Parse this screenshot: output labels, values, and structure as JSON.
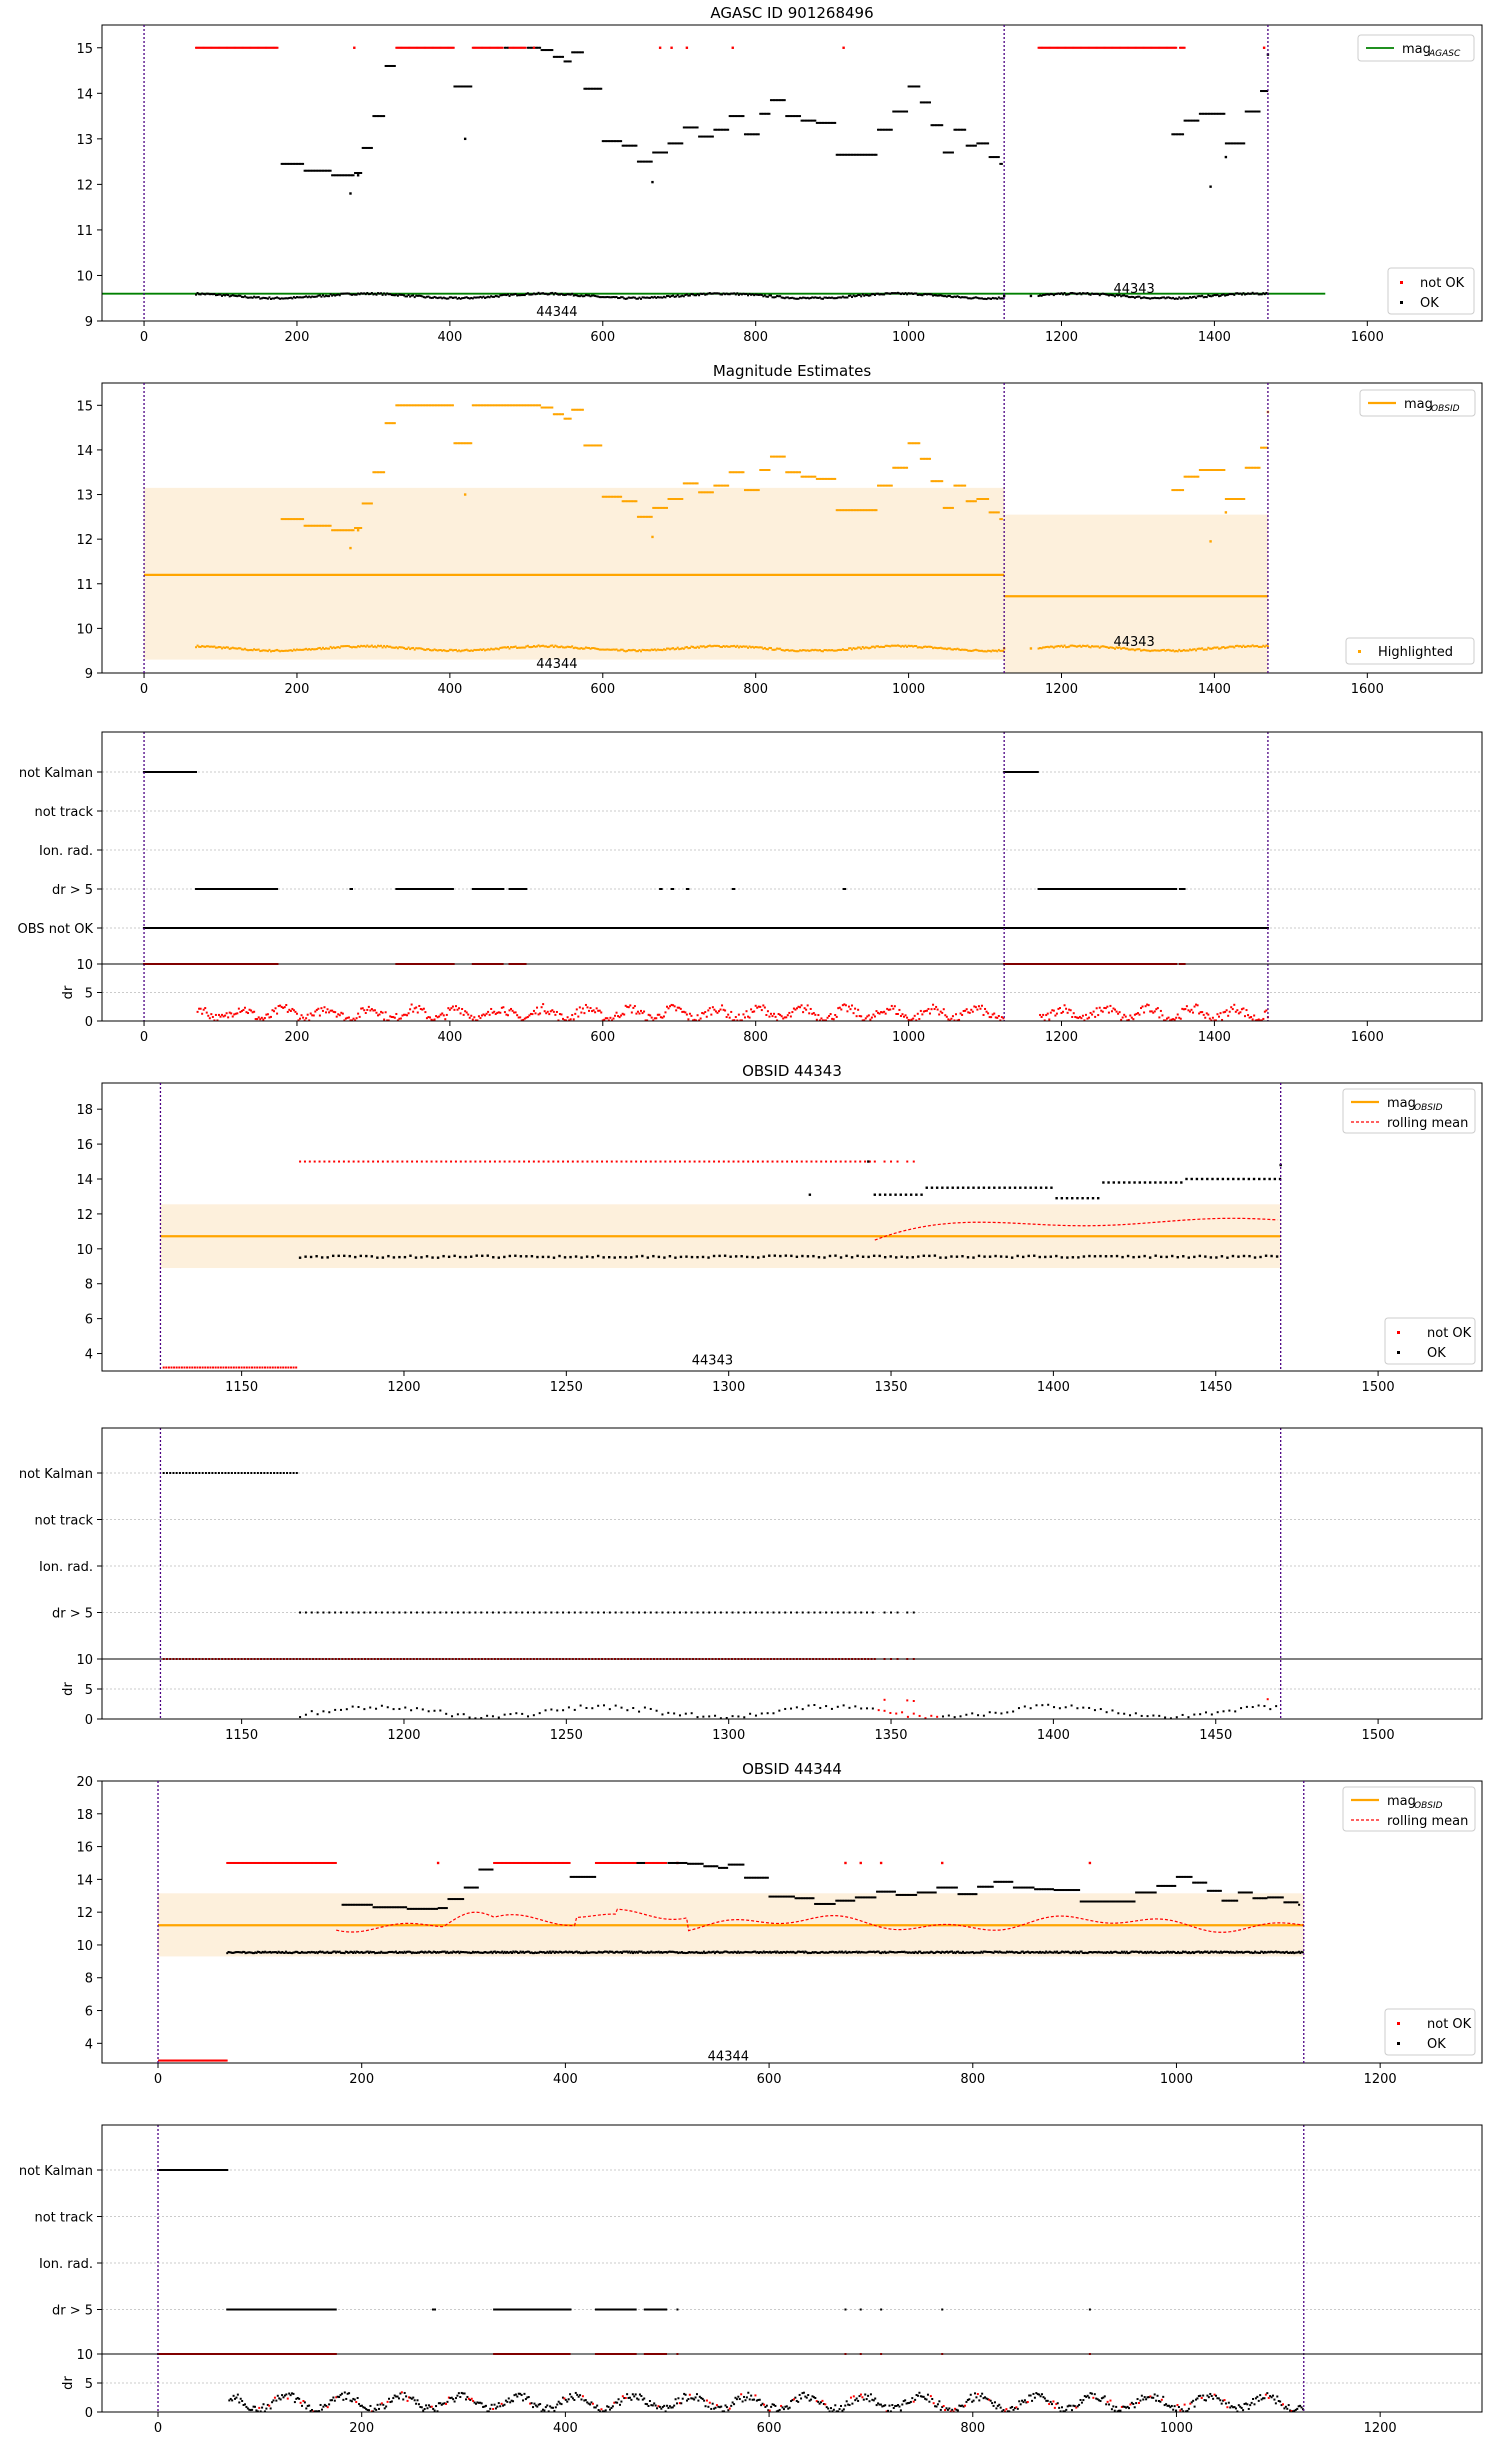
{
  "chart_data": [
    {
      "type": "scatter",
      "title": "AGASC ID 901268496",
      "xlim": [
        -55,
        1750
      ],
      "ylim": [
        9,
        15.5
      ],
      "xticks": [
        "0",
        "200",
        "400",
        "600",
        "800",
        "1000",
        "1200",
        "1400",
        "1600"
      ],
      "xtick_values": [
        0,
        200,
        400,
        600,
        800,
        1000,
        1200,
        1400,
        1600
      ],
      "yticks": [
        "9",
        "10",
        "11",
        "12",
        "13",
        "14",
        "15"
      ],
      "ytick_values": [
        9,
        10,
        11,
        12,
        13,
        14,
        15
      ],
      "obsid_boundaries": [
        0,
        1125,
        1470
      ],
      "obsid_labels": [
        {
          "text": "44344",
          "x": 540,
          "y": 9.2
        },
        {
          "text": "44343",
          "x": 1295,
          "y": 9.7
        }
      ],
      "mag_agasc": 9.6,
      "legend_line": {
        "label": "mag",
        "sub": "AGASC"
      },
      "legend_points": [
        {
          "label": "not OK",
          "color": "#ff0000"
        },
        {
          "label": "OK",
          "color": "#000000"
        }
      ],
      "colors": {
        "ok": "#000000",
        "not_ok": "#ff0000",
        "agasc_line": "#008000",
        "boundary": "#4b0082"
      },
      "segments": [
        [
          180,
          12.45
        ],
        [
          210,
          12.3
        ],
        [
          245,
          12.2
        ],
        [
          275,
          12.25
        ],
        [
          285,
          12.8
        ],
        [
          300,
          13.5
        ],
        [
          315,
          14.6
        ],
        [
          330,
          14.85
        ],
        [
          345,
          15
        ],
        [
          380,
          14.75
        ],
        [
          405,
          14.15
        ],
        [
          430,
          14.2
        ],
        [
          455,
          15
        ],
        [
          485,
          15
        ],
        [
          520,
          14.95
        ],
        [
          535,
          14.8
        ],
        [
          550,
          14.7
        ],
        [
          560,
          14.9
        ],
        [
          575,
          14.1
        ],
        [
          600,
          12.95
        ],
        [
          625,
          12.85
        ],
        [
          645,
          12.5
        ],
        [
          665,
          12.7
        ],
        [
          685,
          12.9
        ],
        [
          705,
          13.25
        ],
        [
          725,
          13.05
        ],
        [
          745,
          13.2
        ],
        [
          765,
          13.5
        ],
        [
          785,
          13.1
        ],
        [
          805,
          13.55
        ],
        [
          820,
          13.85
        ],
        [
          840,
          13.5
        ],
        [
          860,
          13.4
        ],
        [
          880,
          13.35
        ],
        [
          905,
          12.65
        ],
        [
          940,
          12.65
        ],
        [
          960,
          13.2
        ],
        [
          980,
          13.6
        ],
        [
          1000,
          14.15
        ],
        [
          1015,
          13.8
        ],
        [
          1030,
          13.3
        ],
        [
          1045,
          12.7
        ],
        [
          1060,
          13.2
        ],
        [
          1075,
          12.85
        ],
        [
          1090,
          12.9
        ],
        [
          1105,
          12.6
        ],
        [
          1120,
          12.45
        ],
        [
          1345,
          13.1
        ],
        [
          1360,
          13.4
        ],
        [
          1380,
          13.55
        ],
        [
          1400,
          13.55
        ],
        [
          1415,
          12.9
        ],
        [
          1440,
          13.6
        ],
        [
          1460,
          14.05
        ]
      ],
      "not_ok_bands": [
        [
          68,
          175
        ],
        [
          330,
          405
        ],
        [
          430,
          470
        ],
        [
          478,
          500
        ],
        [
          1170,
          1350
        ],
        [
          1355,
          1362
        ]
      ],
      "not_ok_singles": [
        275,
        510,
        675,
        690,
        710,
        770,
        915,
        1465
      ],
      "ok_points_extra": [
        [
          270,
          11.8
        ],
        [
          280,
          12.2
        ],
        [
          420,
          13.0
        ],
        [
          665,
          12.05
        ],
        [
          1395,
          11.95
        ],
        [
          1415,
          12.6
        ],
        [
          1470,
          14.85
        ],
        [
          1160,
          9.55
        ],
        [
          1125,
          9.55
        ]
      ]
    },
    {
      "type": "scatter",
      "title": "Magnitude Estimates",
      "xlim": [
        -55,
        1750
      ],
      "ylim": [
        9,
        15.5
      ],
      "xticks": [
        "0",
        "200",
        "400",
        "600",
        "800",
        "1000",
        "1200",
        "1400",
        "1600"
      ],
      "xtick_values": [
        0,
        200,
        400,
        600,
        800,
        1000,
        1200,
        1400,
        1600
      ],
      "yticks": [
        "9",
        "10",
        "11",
        "12",
        "13",
        "14",
        "15"
      ],
      "ytick_values": [
        9,
        10,
        11,
        12,
        13,
        14,
        15
      ],
      "obsid_labels": [
        {
          "text": "44344",
          "x": 540,
          "y": 9.2
        },
        {
          "text": "44343",
          "x": 1295,
          "y": 9.7
        }
      ],
      "mag_obsid": [
        {
          "x0": 0,
          "x1": 1125,
          "y": 11.2,
          "lo": 9.3,
          "hi": 13.15
        },
        {
          "x0": 1125,
          "x1": 1470,
          "y": 10.72,
          "lo": 9.0,
          "hi": 12.55
        }
      ],
      "legend_line": {
        "label": "mag",
        "sub": "OBSID"
      },
      "legend_points": [
        {
          "label": "Highlighted",
          "color": "#ffa500"
        }
      ],
      "colors": {
        "highlight": "#ffa500",
        "band": "#fdf0dc"
      }
    },
    {
      "type": "scatter",
      "title": "",
      "xlim": [
        -55,
        1750
      ],
      "categories": [
        "not Kalman",
        "not track",
        "Ion. rad.",
        "dr > 5",
        "OBS not OK"
      ],
      "dr_ylabel": "dr",
      "dr_yticks": [
        "0",
        "5",
        "10"
      ],
      "xticks": [
        "0",
        "200",
        "400",
        "600",
        "800",
        "1000",
        "1200",
        "1400",
        "1600"
      ],
      "xtick_values": [
        0,
        200,
        400,
        600,
        800,
        1000,
        1200,
        1400,
        1600
      ],
      "flags": {
        "not Kalman": [
          [
            0,
            68
          ],
          [
            1125,
            1170
          ]
        ],
        "dr > 5": [
          [
            68,
            175
          ],
          [
            270,
            272
          ],
          [
            330,
            405
          ],
          [
            430,
            470
          ],
          [
            478,
            500
          ],
          [
            675,
            677
          ],
          [
            690,
            692
          ],
          [
            710,
            712
          ],
          [
            770,
            772
          ],
          [
            915,
            917
          ],
          [
            1170,
            1350
          ],
          [
            1355,
            1362
          ]
        ],
        "OBS not OK": [
          [
            0,
            1470
          ]
        ]
      }
    },
    {
      "type": "scatter",
      "title": "OBSID 44343",
      "xlim": [
        1107,
        1532
      ],
      "ylim": [
        3,
        19.5
      ],
      "xticks": [
        "1150",
        "1200",
        "1250",
        "1300",
        "1350",
        "1400",
        "1450",
        "1500"
      ],
      "xtick_values": [
        1150,
        1200,
        1250,
        1300,
        1350,
        1400,
        1450,
        1500
      ],
      "yticks": [
        "4",
        "6",
        "8",
        "10",
        "12",
        "14",
        "16",
        "18"
      ],
      "ytick_values": [
        4,
        6,
        8,
        10,
        12,
        14,
        16,
        18
      ],
      "obsid_label": {
        "text": "44343",
        "x": 1295,
        "y": 3.6
      },
      "mag_obsid": {
        "y": 10.72,
        "lo": 8.9,
        "hi": 12.55
      },
      "range": [
        1125,
        1470
      ],
      "legend_line": {
        "label": "mag",
        "sub": "OBSID"
      },
      "legend_dash": "rolling mean",
      "legend_points": [
        {
          "label": "not OK",
          "color": "#ff0000"
        },
        {
          "label": "OK",
          "color": "#000000"
        }
      ]
    },
    {
      "type": "scatter",
      "title": "",
      "xlim": [
        1107,
        1532
      ],
      "categories": [
        "not Kalman",
        "not track",
        "Ion. rad.",
        "dr > 5"
      ],
      "dr_ylabel": "dr",
      "dr_yticks": [
        "0",
        "5",
        "10"
      ],
      "xticks": [
        "1150",
        "1200",
        "1250",
        "1300",
        "1350",
        "1400",
        "1450",
        "1500"
      ],
      "xtick_values": [
        1150,
        1200,
        1250,
        1300,
        1350,
        1400,
        1450,
        1500
      ]
    },
    {
      "type": "scatter",
      "title": "OBSID 44344",
      "xlim": [
        -55,
        1300
      ],
      "ylim": [
        2.8,
        20
      ],
      "xticks": [
        "0",
        "200",
        "400",
        "600",
        "800",
        "1000",
        "1200"
      ],
      "xtick_values": [
        0,
        200,
        400,
        600,
        800,
        1000,
        1200
      ],
      "yticks": [
        "4",
        "6",
        "8",
        "10",
        "12",
        "14",
        "16",
        "18",
        "20"
      ],
      "ytick_values": [
        4,
        6,
        8,
        10,
        12,
        14,
        16,
        18,
        20
      ],
      "obsid_label": {
        "text": "44344",
        "x": 560,
        "y": 3.2
      },
      "mag_obsid": {
        "y": 11.2,
        "lo": 9.3,
        "hi": 13.15
      },
      "range": [
        0,
        1125
      ],
      "legend_line": {
        "label": "mag",
        "sub": "OBSID"
      },
      "legend_dash": "rolling mean",
      "legend_points": [
        {
          "label": "not OK",
          "color": "#ff0000"
        },
        {
          "label": "OK",
          "color": "#000000"
        }
      ]
    },
    {
      "type": "scatter",
      "title": "",
      "xlim": [
        -55,
        1300
      ],
      "categories": [
        "not Kalman",
        "not track",
        "Ion. rad.",
        "dr > 5"
      ],
      "dr_ylabel": "dr",
      "dr_yticks": [
        "0",
        "5",
        "10"
      ],
      "xticks": [
        "0",
        "200",
        "400",
        "600",
        "800",
        "1000",
        "1200"
      ],
      "xtick_values": [
        0,
        200,
        400,
        600,
        800,
        1000,
        1200
      ]
    }
  ]
}
